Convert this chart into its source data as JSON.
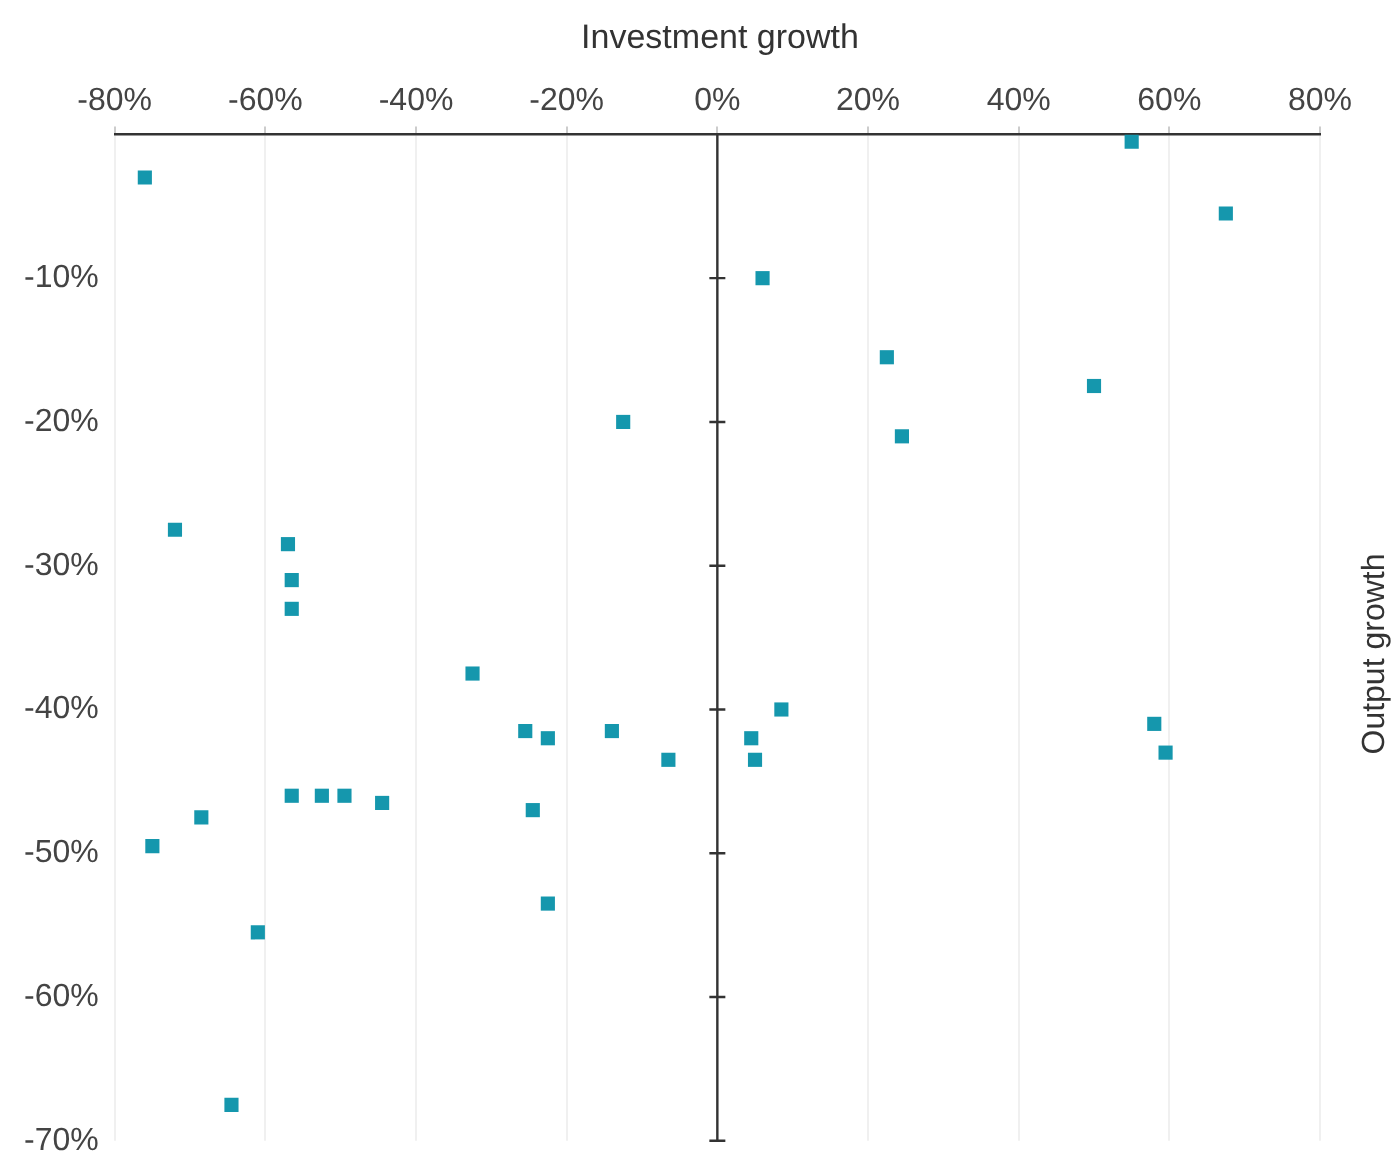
{
  "chart_data": {
    "type": "scatter",
    "title": "Investment growth",
    "ylabel": "Output growth",
    "series": [
      {
        "color": "#1597ad",
        "x": [
          -76,
          -12.5,
          -72,
          -57,
          -56.5,
          -56.5,
          -32.5,
          -25.5,
          -22.5,
          -14,
          -6.5,
          -56.5,
          -52.5,
          -49.5,
          -44.5,
          -68.5,
          -75,
          -24.5,
          -22.5,
          -61,
          -64.5,
          55,
          67.5,
          6,
          22.5,
          50,
          24.5,
          8.5,
          4.5,
          5,
          58,
          59.5
        ],
        "values": [
          -3,
          -20,
          -27.5,
          -28.5,
          -31,
          -33,
          -37.5,
          -41.5,
          -42,
          -41.5,
          -43.5,
          -46,
          -46,
          -46,
          -46.5,
          -47.5,
          -49.5,
          -47,
          -53.5,
          -55.5,
          -67.5,
          -0.5,
          -5.5,
          -10,
          -15.5,
          -17.5,
          -21,
          -40,
          -42,
          -43.5,
          -41,
          -43
        ]
      }
    ],
    "marker": "square",
    "grid": "x",
    "legend": false,
    "xlim": [
      -80,
      80
    ],
    "xticks": [
      {
        "value": -80,
        "label": "-80%"
      },
      {
        "value": -60,
        "label": "-60%"
      },
      {
        "value": -40,
        "label": "-40%"
      },
      {
        "value": -20,
        "label": "-20%"
      },
      {
        "value": 0,
        "label": "0%"
      },
      {
        "value": 20,
        "label": "20%"
      },
      {
        "value": 40,
        "label": "40%"
      },
      {
        "value": 60,
        "label": "60%"
      },
      {
        "value": 80,
        "label": "80%"
      }
    ],
    "ylim": [
      -70,
      0
    ],
    "yticks": [
      {
        "value": -10,
        "label": "-10%"
      },
      {
        "value": -20,
        "label": "-20%"
      },
      {
        "value": -30,
        "label": "-30%"
      },
      {
        "value": -40,
        "label": "-40%"
      },
      {
        "value": -50,
        "label": "-50%"
      },
      {
        "value": -60,
        "label": "-60%"
      },
      {
        "value": -70,
        "label": "-70%"
      }
    ]
  }
}
